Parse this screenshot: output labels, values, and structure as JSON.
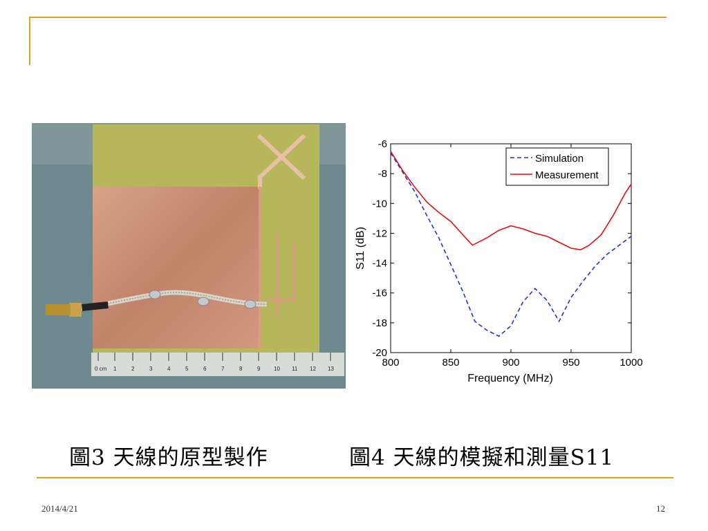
{
  "slide": {
    "caption_left": "圖3  天線的原型製作",
    "caption_right": "圖4  天線的模擬和測量S11",
    "footer_date": "2014/4/21",
    "page_number": "12",
    "accent_color": "#d9a31a"
  },
  "photo": {
    "ruler_label": "0 cm",
    "ruler_numbers": [
      "1",
      "2",
      "3",
      "4",
      "5",
      "6",
      "7",
      "8",
      "9",
      "10",
      "11",
      "12",
      "13"
    ]
  },
  "chart_data": {
    "type": "line",
    "xlabel": "Frequency (MHz)",
    "ylabel": "S11 (dB)",
    "xlim": [
      800,
      1000
    ],
    "ylim": [
      -20,
      -6
    ],
    "xticks": [
      800,
      850,
      900,
      950,
      1000
    ],
    "yticks": [
      -6,
      -8,
      -10,
      -12,
      -14,
      -16,
      -18,
      -20
    ],
    "grid": false,
    "legend_position": "top-right",
    "series": [
      {
        "name": "Simulation",
        "color": "#2030e0",
        "style": "dashed",
        "x": [
          800,
          810,
          820,
          830,
          840,
          850,
          860,
          870,
          880,
          890,
          900,
          910,
          920,
          930,
          940,
          950,
          960,
          970,
          980,
          990,
          1000
        ],
        "y": [
          -6.6,
          -7.9,
          -9.2,
          -10.8,
          -12.3,
          -14.1,
          -15.9,
          -17.9,
          -18.5,
          -18.9,
          -18.2,
          -16.6,
          -15.7,
          -16.5,
          -17.9,
          -16.3,
          -15.2,
          -14.2,
          -13.4,
          -12.8,
          -12.2
        ]
      },
      {
        "name": "Measurement",
        "color": "#e01010",
        "style": "solid",
        "x": [
          800,
          810,
          820,
          830,
          840,
          850,
          860,
          868,
          880,
          890,
          900,
          910,
          920,
          930,
          940,
          950,
          958,
          965,
          975,
          985,
          995,
          1000
        ],
        "y": [
          -6.5,
          -7.8,
          -8.9,
          -9.9,
          -10.6,
          -11.2,
          -12.1,
          -12.8,
          -12.3,
          -11.8,
          -11.5,
          -11.7,
          -12.0,
          -12.2,
          -12.6,
          -13.0,
          -13.1,
          -12.8,
          -12.1,
          -10.8,
          -9.3,
          -8.7
        ]
      }
    ]
  }
}
